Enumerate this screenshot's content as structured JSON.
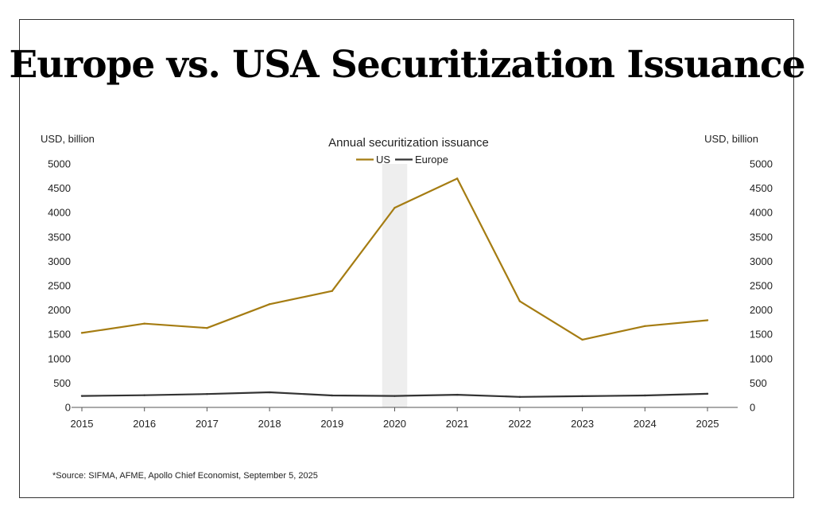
{
  "header": {
    "title": "Europe vs. USA Securitization Issuance"
  },
  "footer": {
    "source": "*Source: SIFMA, AFME, Apollo Chief Economist, September 5, 2025"
  },
  "colors": {
    "us": "#a57c12",
    "europe": "#333333",
    "highlight": "#eeeeee",
    "axis": "#555555"
  },
  "chart_data": {
    "type": "line",
    "title": "Annual securitization issuance",
    "ylabel_left": "USD, billion",
    "ylabel_right": "USD, billion",
    "xlabel": "",
    "x": [
      "2015",
      "2016",
      "2017",
      "2018",
      "2019",
      "2020",
      "2021",
      "2022",
      "2023",
      "2024",
      "2025"
    ],
    "series": [
      {
        "name": "US",
        "values": [
          1530,
          1720,
          1630,
          2120,
          2390,
          4100,
          4700,
          2180,
          1390,
          1670,
          1790
        ]
      },
      {
        "name": "Europe",
        "values": [
          235,
          250,
          275,
          310,
          245,
          235,
          260,
          215,
          230,
          245,
          280
        ]
      }
    ],
    "ylim": [
      0,
      5000
    ],
    "yticks": [
      0,
      500,
      1000,
      1500,
      2000,
      2500,
      3000,
      3500,
      4000,
      4500,
      5000
    ],
    "highlight_year": "2020",
    "legend_position": "top-center",
    "grid": false
  }
}
